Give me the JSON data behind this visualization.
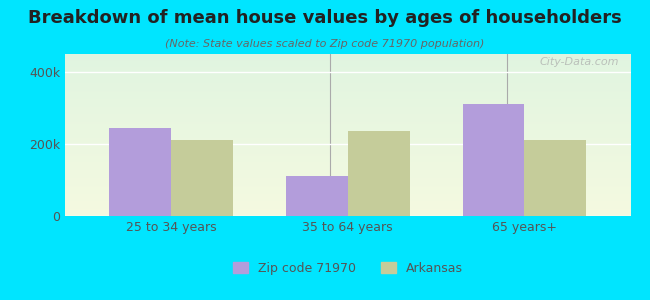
{
  "title": "Breakdown of mean house values by ages of householders",
  "subtitle": "(Note: State values scaled to Zip code 71970 population)",
  "categories": [
    "25 to 34 years",
    "35 to 64 years",
    "65 years+"
  ],
  "zip_values": [
    245000,
    110000,
    310000
  ],
  "ark_values": [
    210000,
    235000,
    210000
  ],
  "zip_color": "#b39ddb",
  "ark_color": "#c5cc9a",
  "ylim": [
    0,
    450000
  ],
  "ytick_labels": [
    "0",
    "200k",
    "400k"
  ],
  "ytick_vals": [
    0,
    200000,
    400000
  ],
  "legend_zip": "Zip code 71970",
  "legend_ark": "Arkansas",
  "background_outer": "#00e5ff",
  "watermark": "City-Data.com",
  "bar_width": 0.35,
  "xlim": [
    -0.6,
    2.6
  ],
  "sep_lines": [
    0.9,
    1.9
  ]
}
